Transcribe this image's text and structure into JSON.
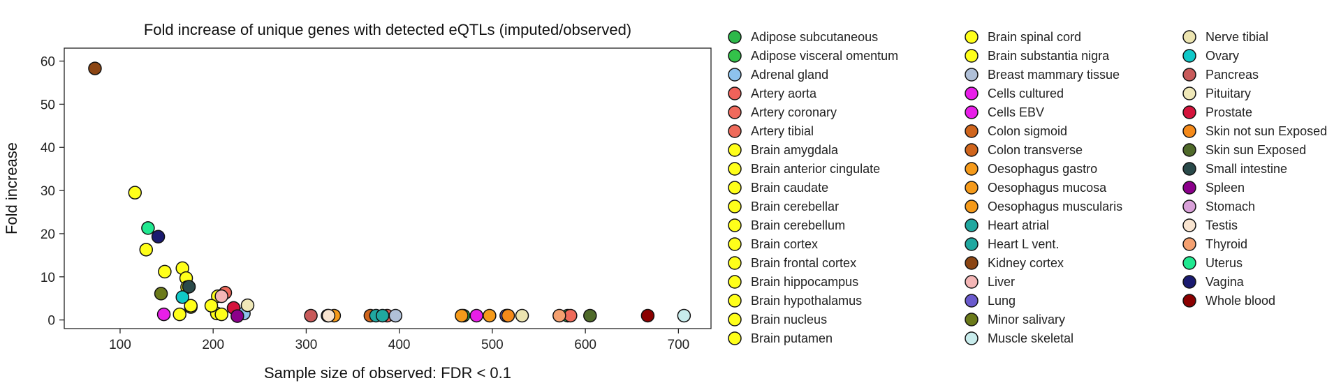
{
  "chart_data": {
    "type": "scatter",
    "title": "Fold increase of unique genes with detected eQTLs (imputed/observed)",
    "xlabel": "Sample size of observed: FDR < 0.1",
    "ylabel": "Fold increase",
    "xlim": [
      40,
      735
    ],
    "ylim": [
      -2,
      63
    ],
    "xticks": [
      100,
      200,
      300,
      400,
      500,
      600,
      700
    ],
    "yticks": [
      0,
      10,
      20,
      30,
      40,
      50,
      60
    ],
    "grid": false,
    "legend_placement": "right",
    "series": [
      {
        "name": "Adipose subcutaneous",
        "color": "#2db84a",
        "points": [
          [
            581,
            1.0
          ]
        ]
      },
      {
        "name": "Adipose visceral omentum",
        "color": "#33c24a",
        "points": [
          [
            469,
            1.0
          ]
        ]
      },
      {
        "name": "Adrenal gland",
        "color": "#8ec3ee",
        "points": [
          [
            233,
            1.5
          ]
        ]
      },
      {
        "name": "Artery aorta",
        "color": "#f0625a",
        "points": [
          [
            387,
            1.0
          ]
        ]
      },
      {
        "name": "Artery coronary",
        "color": "#f06a5c",
        "points": [
          [
            213,
            6.3
          ]
        ]
      },
      {
        "name": "Artery tibial",
        "color": "#ee6a5a",
        "points": [
          [
            584,
            1.0
          ]
        ]
      },
      {
        "name": "Brain amygdala",
        "color": "#ffff1a",
        "points": [
          [
            116,
            29.5
          ]
        ]
      },
      {
        "name": "Brain anterior cingulate",
        "color": "#ffff1a",
        "points": [
          [
            128,
            16.3
          ]
        ]
      },
      {
        "name": "Brain caudate",
        "color": "#ffff1a",
        "points": [
          [
            204,
            1.5
          ]
        ]
      },
      {
        "name": "Brain cerebellar",
        "color": "#ffff1a",
        "points": [
          [
            167,
            12.0
          ]
        ]
      },
      {
        "name": "Brain cerebellum",
        "color": "#ffff1a",
        "points": [
          [
            209,
            1.3
          ]
        ]
      },
      {
        "name": "Brain cortex",
        "color": "#ffff1a",
        "points": [
          [
            205,
            5.5
          ]
        ]
      },
      {
        "name": "Brain frontal cortex",
        "color": "#ffff1a",
        "points": [
          [
            148,
            11.2
          ]
        ]
      },
      {
        "name": "Brain hippocampus",
        "color": "#ffff1a",
        "points": [
          [
            171,
            9.7
          ]
        ]
      },
      {
        "name": "Brain hypothalamus",
        "color": "#ffff1a",
        "points": [
          [
            172,
            7.6
          ]
        ]
      },
      {
        "name": "Brain nucleus",
        "color": "#ffff1a",
        "points": [
          [
            176,
            3.0
          ]
        ]
      },
      {
        "name": "Brain putamen",
        "color": "#ffff1a",
        "points": [
          [
            198,
            3.3
          ]
        ]
      },
      {
        "name": "Brain spinal cord",
        "color": "#ffff1a",
        "points": [
          [
            176,
            3.3
          ]
        ]
      },
      {
        "name": "Brain substantia nigra",
        "color": "#ffff1a",
        "points": [
          [
            164,
            1.3
          ]
        ]
      },
      {
        "name": "Breast mammary tissue",
        "color": "#b0c0d8",
        "points": [
          [
            396,
            1.0
          ]
        ]
      },
      {
        "name": "Cells cultured",
        "color": "#e81ee8",
        "points": [
          [
            483,
            1.0
          ]
        ]
      },
      {
        "name": "Cells EBV",
        "color": "#e81ee8",
        "points": [
          [
            147,
            1.3
          ]
        ]
      },
      {
        "name": "Colon sigmoid",
        "color": "#d0651c",
        "points": [
          [
            369,
            1.0
          ]
        ]
      },
      {
        "name": "Colon transverse",
        "color": "#d0651c",
        "points": [
          [
            516,
            1.0
          ]
        ]
      },
      {
        "name": "Oesophagus gastro",
        "color": "#f59a1a",
        "points": [
          [
            330,
            1.0
          ]
        ]
      },
      {
        "name": "Oesophagus mucosa",
        "color": "#f59a1a",
        "points": [
          [
            497,
            1.0
          ]
        ]
      },
      {
        "name": "Oesophagus muscularis",
        "color": "#f59a1a",
        "points": [
          [
            467,
            1.0
          ]
        ]
      },
      {
        "name": "Heart atrial",
        "color": "#20a8a0",
        "points": [
          [
            375,
            1.0
          ]
        ]
      },
      {
        "name": "Heart L vent.",
        "color": "#20a8a0",
        "points": [
          [
            382,
            1.0
          ]
        ]
      },
      {
        "name": "Kidney cortex",
        "color": "#8b4513",
        "points": [
          [
            73,
            58.3
          ]
        ]
      },
      {
        "name": "Liver",
        "color": "#f4b6b6",
        "points": [
          [
            209,
            5.5
          ]
        ]
      },
      {
        "name": "Lung",
        "color": "#6a5acd",
        "points": [
          [
            515,
            1.0
          ]
        ]
      },
      {
        "name": "Minor salivary",
        "color": "#6b7a1a",
        "points": [
          [
            144,
            6.1
          ]
        ]
      },
      {
        "name": "Muscle skeletal",
        "color": "#c8ecec",
        "points": [
          [
            706,
            1.0
          ]
        ]
      },
      {
        "name": "Nerve tibial",
        "color": "#ece4b0",
        "points": [
          [
            532,
            1.0
          ]
        ]
      },
      {
        "name": "Ovary",
        "color": "#10c8c8",
        "points": [
          [
            167,
            5.3
          ]
        ]
      },
      {
        "name": "Pancreas",
        "color": "#c85a5a",
        "points": [
          [
            305,
            1.0
          ]
        ]
      },
      {
        "name": "Pituitary",
        "color": "#efe8b8",
        "points": [
          [
            237,
            3.4
          ]
        ]
      },
      {
        "name": "Prostate",
        "color": "#d4143c",
        "points": [
          [
            222,
            2.8
          ]
        ]
      },
      {
        "name": "Skin not sun Exposed",
        "color": "#f58a1a",
        "points": [
          [
            517,
            1.0
          ]
        ]
      },
      {
        "name": "Skin sun Exposed",
        "color": "#4f6a2a",
        "points": [
          [
            605,
            1.0
          ]
        ]
      },
      {
        "name": "Small intestine",
        "color": "#2a4a4a",
        "points": [
          [
            174,
            7.7
          ]
        ]
      },
      {
        "name": "Spleen",
        "color": "#8b008b",
        "points": [
          [
            226,
            0.9
          ]
        ]
      },
      {
        "name": "Stomach",
        "color": "#d8a0d8",
        "points": [
          [
            323,
            1.0
          ]
        ]
      },
      {
        "name": "Testis",
        "color": "#f8e4d0",
        "points": [
          [
            324,
            1.0
          ]
        ]
      },
      {
        "name": "Thyroid",
        "color": "#f4a070",
        "points": [
          [
            572,
            1.0
          ]
        ]
      },
      {
        "name": "Uterus",
        "color": "#20e890",
        "points": [
          [
            130,
            21.3
          ]
        ]
      },
      {
        "name": "Vagina",
        "color": "#1a1a70",
        "points": [
          [
            141,
            19.3
          ]
        ]
      },
      {
        "name": "Whole blood",
        "color": "#8b0000",
        "points": [
          [
            667,
            1.0
          ]
        ]
      }
    ]
  }
}
